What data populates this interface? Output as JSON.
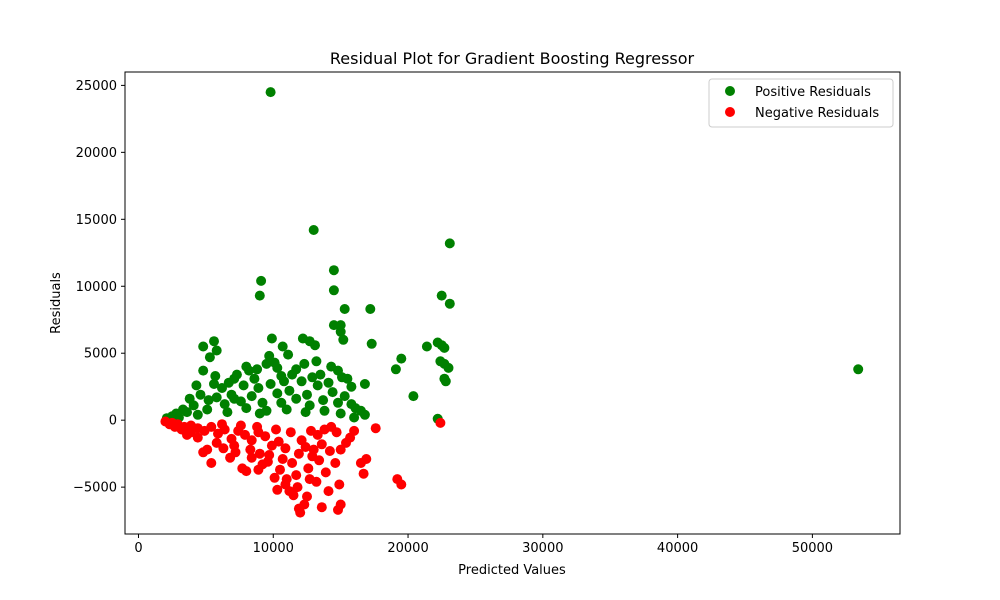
{
  "chart_data": {
    "type": "scatter",
    "title": "Residual Plot for Gradient Boosting Regressor",
    "xlabel": "Predicted Values",
    "ylabel": "Residuals",
    "xlim": [
      -1000,
      56500
    ],
    "ylim": [
      -8500,
      26000
    ],
    "xticks": [
      0,
      10000,
      20000,
      30000,
      40000,
      50000
    ],
    "yticks": [
      -5000,
      0,
      5000,
      10000,
      15000,
      20000,
      25000
    ],
    "xtick_labels": [
      "0",
      "10000",
      "20000",
      "30000",
      "40000",
      "50000"
    ],
    "ytick_labels": [
      "−5000",
      "0",
      "5000",
      "10000",
      "15000",
      "20000",
      "25000"
    ],
    "grid": false,
    "legend_position": "top-right",
    "series": [
      {
        "name": "Positive Residuals",
        "color": "#008000",
        "points": [
          [
            9800,
            24500
          ],
          [
            13000,
            14200
          ],
          [
            9100,
            10400
          ],
          [
            9000,
            9300
          ],
          [
            14500,
            11200
          ],
          [
            14500,
            9700
          ],
          [
            23100,
            13200
          ],
          [
            22500,
            9300
          ],
          [
            23100,
            8700
          ],
          [
            15300,
            8300
          ],
          [
            17200,
            8300
          ],
          [
            14500,
            7100
          ],
          [
            15000,
            7100
          ],
          [
            15000,
            6600
          ],
          [
            15200,
            6000
          ],
          [
            17300,
            5700
          ],
          [
            12200,
            6100
          ],
          [
            12700,
            5900
          ],
          [
            13100,
            5600
          ],
          [
            9900,
            6100
          ],
          [
            10700,
            5500
          ],
          [
            11100,
            4900
          ],
          [
            5600,
            5900
          ],
          [
            5800,
            5200
          ],
          [
            4800,
            5500
          ],
          [
            5300,
            4700
          ],
          [
            21400,
            5500
          ],
          [
            22200,
            5800
          ],
          [
            22500,
            5600
          ],
          [
            22700,
            5400
          ],
          [
            22400,
            4400
          ],
          [
            22700,
            4200
          ],
          [
            23000,
            3900
          ],
          [
            19500,
            4600
          ],
          [
            19100,
            3800
          ],
          [
            53400,
            3800
          ],
          [
            22700,
            3100
          ],
          [
            22800,
            2900
          ],
          [
            20400,
            1800
          ],
          [
            22200,
            100
          ],
          [
            16800,
            2700
          ],
          [
            15800,
            2500
          ],
          [
            14800,
            3700
          ],
          [
            15100,
            3200
          ],
          [
            15500,
            3100
          ],
          [
            13200,
            4400
          ],
          [
            12300,
            4200
          ],
          [
            11700,
            3800
          ],
          [
            10100,
            4300
          ],
          [
            9500,
            4200
          ],
          [
            9700,
            4800
          ],
          [
            10300,
            3900
          ],
          [
            8800,
            3800
          ],
          [
            8000,
            4000
          ],
          [
            8200,
            3700
          ],
          [
            7300,
            3400
          ],
          [
            7100,
            3100
          ],
          [
            6700,
            2800
          ],
          [
            7800,
            2600
          ],
          [
            6200,
            2400
          ],
          [
            5700,
            3300
          ],
          [
            5600,
            2700
          ],
          [
            4800,
            3700
          ],
          [
            4300,
            2600
          ],
          [
            3800,
            1600
          ],
          [
            4100,
            1100
          ],
          [
            3300,
            800
          ],
          [
            2800,
            500
          ],
          [
            2500,
            300
          ],
          [
            2100,
            150
          ],
          [
            3000,
            200
          ],
          [
            3600,
            600
          ],
          [
            4600,
            1900
          ],
          [
            5200,
            1500
          ],
          [
            5800,
            1700
          ],
          [
            6400,
            1200
          ],
          [
            6900,
            1900
          ],
          [
            7600,
            1400
          ],
          [
            8400,
            1800
          ],
          [
            8900,
            2400
          ],
          [
            9200,
            1300
          ],
          [
            9800,
            2700
          ],
          [
            10300,
            2000
          ],
          [
            10800,
            2900
          ],
          [
            11200,
            2200
          ],
          [
            11700,
            1600
          ],
          [
            12100,
            2900
          ],
          [
            12500,
            1900
          ],
          [
            12900,
            3200
          ],
          [
            13300,
            2600
          ],
          [
            13700,
            1500
          ],
          [
            14100,
            2800
          ],
          [
            14400,
            2100
          ],
          [
            14800,
            1300
          ],
          [
            15300,
            1800
          ],
          [
            15800,
            1200
          ],
          [
            16100,
            900
          ],
          [
            16500,
            700
          ],
          [
            16800,
            400
          ],
          [
            12400,
            600
          ],
          [
            11000,
            800
          ],
          [
            9500,
            700
          ],
          [
            8000,
            900
          ],
          [
            6600,
            600
          ],
          [
            5100,
            800
          ],
          [
            4400,
            400
          ],
          [
            13800,
            700
          ],
          [
            15000,
            500
          ],
          [
            16000,
            200
          ],
          [
            10600,
            1300
          ],
          [
            12700,
            1100
          ],
          [
            7100,
            1600
          ],
          [
            9000,
            500
          ],
          [
            11400,
            3400
          ],
          [
            13500,
            3400
          ],
          [
            14300,
            4000
          ],
          [
            10600,
            3300
          ],
          [
            8600,
            3100
          ]
        ]
      },
      {
        "name": "Negative Residuals",
        "color": "#ff0000",
        "points": [
          [
            2000,
            -100
          ],
          [
            2300,
            -300
          ],
          [
            2700,
            -500
          ],
          [
            3200,
            -700
          ],
          [
            3600,
            -1100
          ],
          [
            3900,
            -900
          ],
          [
            4400,
            -1300
          ],
          [
            4800,
            -2400
          ],
          [
            5400,
            -3200
          ],
          [
            5100,
            -2200
          ],
          [
            5800,
            -1700
          ],
          [
            6300,
            -2100
          ],
          [
            6800,
            -2800
          ],
          [
            7200,
            -2400
          ],
          [
            7700,
            -3600
          ],
          [
            8000,
            -3800
          ],
          [
            8400,
            -2800
          ],
          [
            8900,
            -3700
          ],
          [
            9200,
            -3300
          ],
          [
            9700,
            -2600
          ],
          [
            10100,
            -4300
          ],
          [
            10500,
            -3700
          ],
          [
            10900,
            -4800
          ],
          [
            11200,
            -5300
          ],
          [
            11500,
            -5600
          ],
          [
            11800,
            -5000
          ],
          [
            12000,
            -6900
          ],
          [
            11900,
            -6600
          ],
          [
            12300,
            -6300
          ],
          [
            12500,
            -5700
          ],
          [
            12700,
            -4400
          ],
          [
            13200,
            -4600
          ],
          [
            13600,
            -6500
          ],
          [
            14100,
            -5300
          ],
          [
            14800,
            -6700
          ],
          [
            15000,
            -6300
          ],
          [
            14900,
            -4800
          ],
          [
            14600,
            -3200
          ],
          [
            15000,
            -2200
          ],
          [
            15700,
            -1300
          ],
          [
            16000,
            -800
          ],
          [
            16500,
            -3200
          ],
          [
            16700,
            -4000
          ],
          [
            16900,
            -2900
          ],
          [
            17600,
            -600
          ],
          [
            19200,
            -4400
          ],
          [
            19500,
            -4800
          ],
          [
            22400,
            -200
          ],
          [
            13900,
            -3900
          ],
          [
            13400,
            -3000
          ],
          [
            12900,
            -2700
          ],
          [
            12400,
            -2000
          ],
          [
            11900,
            -2500
          ],
          [
            11400,
            -3200
          ],
          [
            10900,
            -2100
          ],
          [
            10400,
            -1600
          ],
          [
            9900,
            -1900
          ],
          [
            9400,
            -1200
          ],
          [
            8900,
            -900
          ],
          [
            8400,
            -1500
          ],
          [
            7900,
            -1100
          ],
          [
            7400,
            -800
          ],
          [
            6900,
            -1400
          ],
          [
            6400,
            -700
          ],
          [
            5900,
            -1000
          ],
          [
            5400,
            -500
          ],
          [
            4900,
            -800
          ],
          [
            4400,
            -600
          ],
          [
            3900,
            -400
          ],
          [
            3400,
            -500
          ],
          [
            2900,
            -300
          ],
          [
            2500,
            -200
          ],
          [
            12800,
            -800
          ],
          [
            13300,
            -1100
          ],
          [
            13800,
            -700
          ],
          [
            14300,
            -500
          ],
          [
            14700,
            -900
          ],
          [
            11300,
            -900
          ],
          [
            10200,
            -700
          ],
          [
            8800,
            -500
          ],
          [
            7600,
            -400
          ],
          [
            6200,
            -300
          ],
          [
            15400,
            -1700
          ],
          [
            14200,
            -2300
          ],
          [
            13600,
            -1800
          ],
          [
            12100,
            -1500
          ],
          [
            10700,
            -2900
          ],
          [
            9600,
            -3100
          ],
          [
            8300,
            -2200
          ],
          [
            7100,
            -1900
          ],
          [
            11700,
            -4100
          ],
          [
            12600,
            -3600
          ],
          [
            10300,
            -5200
          ],
          [
            11000,
            -4400
          ],
          [
            13000,
            -2200
          ],
          [
            9000,
            -2500
          ]
        ]
      }
    ]
  }
}
